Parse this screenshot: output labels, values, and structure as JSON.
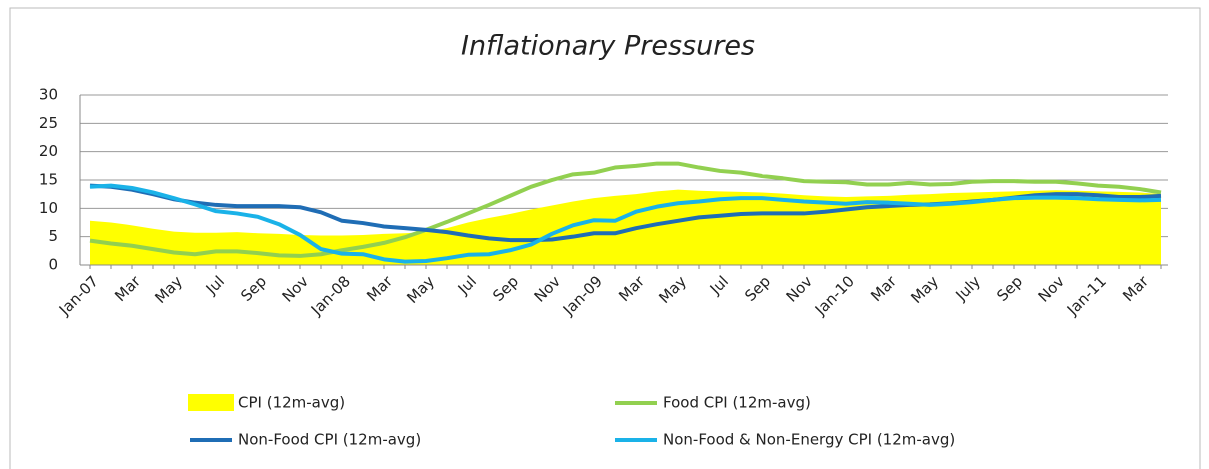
{
  "chart_data": {
    "type": "line",
    "title": "Inflationary Pressures",
    "categories": [
      "Jan-07",
      null,
      "Mar",
      null,
      "May",
      null,
      "Jul",
      null,
      "Sep",
      null,
      "Nov",
      null,
      "Jan-08",
      null,
      "Mar",
      null,
      "May",
      null,
      "Jul",
      null,
      "Sep",
      null,
      "Nov",
      null,
      "Jan-09",
      null,
      "Mar",
      null,
      "May",
      null,
      "Jul",
      null,
      "Sep",
      null,
      "Nov",
      null,
      "Jan-10",
      null,
      "Mar",
      null,
      "May",
      null,
      "July",
      null,
      "Sep",
      null,
      "Nov",
      null,
      "Jan-11",
      null,
      "Mar",
      null
    ],
    "ylim": [
      0,
      30
    ],
    "yticks": [
      0,
      5,
      10,
      15,
      20,
      25,
      30
    ],
    "grid": true,
    "legend": "bottom",
    "series": [
      {
        "name": "CPI (12m-avg)",
        "color": "#ffff00",
        "style": "area",
        "values": [
          7.8,
          7.5,
          7.0,
          6.4,
          5.9,
          5.7,
          5.7,
          5.8,
          5.6,
          5.5,
          5.3,
          5.2,
          5.2,
          5.3,
          5.5,
          5.6,
          5.8,
          6.5,
          7.5,
          8.3,
          9.0,
          9.8,
          10.5,
          11.2,
          11.8,
          12.2,
          12.5,
          13.0,
          13.3,
          13.1,
          13.0,
          12.9,
          12.8,
          12.6,
          12.3,
          12.1,
          12.0,
          12.1,
          12.2,
          12.4,
          12.5,
          12.7,
          12.8,
          12.9,
          13.0,
          13.1,
          13.2,
          13.1,
          13.0,
          12.9,
          12.8,
          12.5
        ]
      },
      {
        "name": "Food CPI (12m-avg)",
        "color": "#92d050",
        "style": "line",
        "values": [
          4.3,
          3.8,
          3.4,
          2.8,
          2.2,
          1.9,
          2.4,
          2.4,
          2.1,
          1.7,
          1.6,
          1.9,
          2.6,
          3.2,
          3.9,
          4.9,
          6.2,
          7.6,
          9.1,
          10.6,
          12.2,
          13.8,
          15.0,
          16.0,
          16.3,
          17.2,
          17.5,
          17.9,
          17.9,
          17.2,
          16.6,
          16.3,
          15.7,
          15.3,
          14.8,
          14.7,
          14.6,
          14.2,
          14.2,
          14.5,
          14.2,
          14.3,
          14.7,
          14.8,
          14.8,
          14.7,
          14.7,
          14.4,
          14.0,
          13.8,
          13.4,
          12.8
        ]
      },
      {
        "name": "Non-Food CPI (12m-avg)",
        "color": "#1f6db5",
        "style": "line",
        "values": [
          14.0,
          13.8,
          13.3,
          12.5,
          11.6,
          11.0,
          10.6,
          10.4,
          10.4,
          10.4,
          10.2,
          9.3,
          7.8,
          7.4,
          6.8,
          6.5,
          6.2,
          5.8,
          5.2,
          4.7,
          4.4,
          4.4,
          4.5,
          5.0,
          5.6,
          5.6,
          6.5,
          7.2,
          7.8,
          8.4,
          8.7,
          9.0,
          9.1,
          9.1,
          9.1,
          9.4,
          9.8,
          10.2,
          10.4,
          10.6,
          10.7,
          10.9,
          11.2,
          11.5,
          11.9,
          12.3,
          12.5,
          12.5,
          12.3,
          12.0,
          12.0,
          12.2
        ]
      },
      {
        "name": "Non-Food & Non-Energy CPI (12m-avg)",
        "color": "#1ab2e8",
        "style": "line",
        "values": [
          13.8,
          14.0,
          13.6,
          12.8,
          11.8,
          10.7,
          9.5,
          9.1,
          8.5,
          7.2,
          5.3,
          2.8,
          2.0,
          1.9,
          1.0,
          0.6,
          0.7,
          1.2,
          1.8,
          1.9,
          2.6,
          3.6,
          5.5,
          7.0,
          7.9,
          7.8,
          9.4,
          10.3,
          10.9,
          11.2,
          11.6,
          11.8,
          11.8,
          11.5,
          11.2,
          11.0,
          10.8,
          11.1,
          11.0,
          10.8,
          10.6,
          10.8,
          11.1,
          11.5,
          11.8,
          11.9,
          11.9,
          11.8,
          11.6,
          11.5,
          11.4,
          11.5
        ]
      }
    ]
  }
}
